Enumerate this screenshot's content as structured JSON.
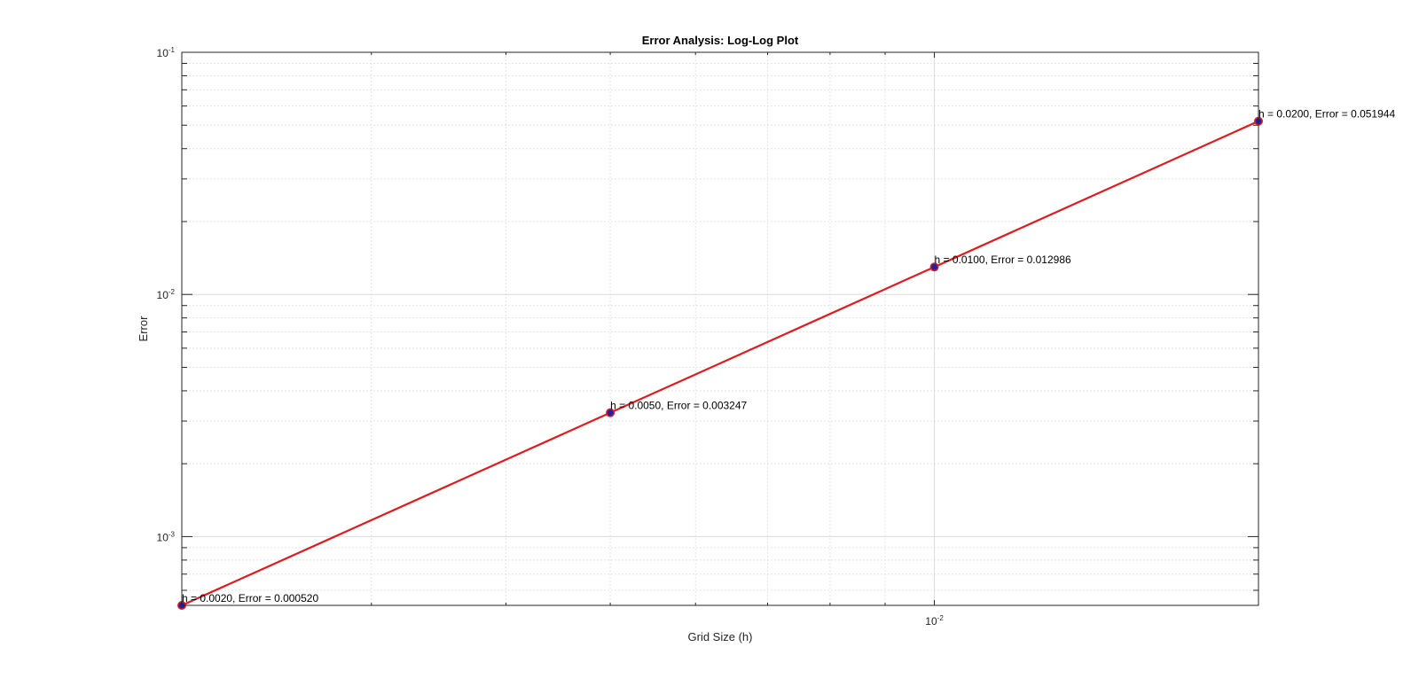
{
  "chart_data": {
    "type": "line",
    "title": "Error Analysis: Log-Log Plot",
    "xlabel": "Grid Size (h)",
    "ylabel": "Error",
    "xscale": "log",
    "yscale": "log",
    "xlim": [
      0.002,
      0.02
    ],
    "ylim": [
      0.00052,
      0.1
    ],
    "grid": true,
    "x_ticks": [
      {
        "value": 0.01,
        "base": "10",
        "exp": "-2"
      }
    ],
    "y_ticks": [
      {
        "value": 0.001,
        "base": "10",
        "exp": "-3"
      },
      {
        "value": 0.01,
        "base": "10",
        "exp": "-2"
      },
      {
        "value": 0.1,
        "base": "10",
        "exp": "-1"
      }
    ],
    "series": [
      {
        "x": [
          0.002,
          0.005,
          0.01,
          0.02
        ],
        "y": [
          0.00052,
          0.003247,
          0.012986,
          0.05194
        ],
        "line_color": "#e41a1c",
        "marker_edge_color": "#e41a1c",
        "marker_face_color": "#1f1fa8"
      }
    ],
    "annotations": [
      {
        "x": 0.002,
        "y": 0.00052,
        "text": "h = 0.0020, Error = 0.000520"
      },
      {
        "x": 0.005,
        "y": 0.003247,
        "text": "h = 0.0050, Error = 0.003247"
      },
      {
        "x": 0.01,
        "y": 0.012986,
        "text": "h = 0.0100, Error = 0.012986"
      },
      {
        "x": 0.02,
        "y": 0.05194,
        "text": "h = 0.0200, Error = 0.051944"
      }
    ]
  }
}
